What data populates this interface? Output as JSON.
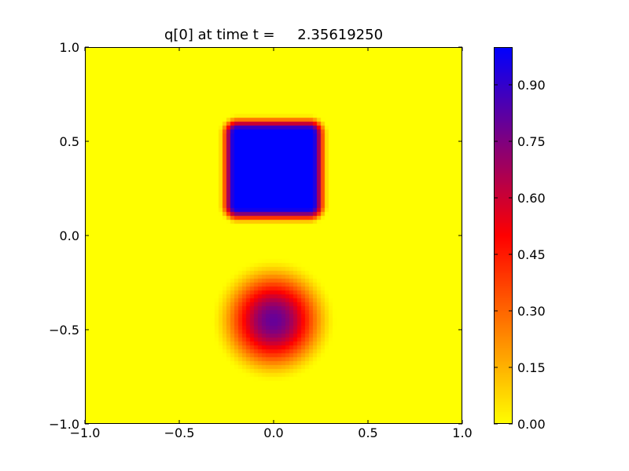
{
  "chart_data": {
    "type": "heatmap",
    "title": "q[0] at time t =     2.35619250",
    "xlim": [
      -1.0,
      1.0
    ],
    "ylim": [
      -1.0,
      1.0
    ],
    "x_ticks": [
      -1.0,
      -0.5,
      0.0,
      0.5,
      1.0
    ],
    "x_tick_labels": [
      "−1.0",
      "−0.5",
      "0.0",
      "0.5",
      "1.0"
    ],
    "y_ticks": [
      -1.0,
      -0.5,
      0.0,
      0.5,
      1.0
    ],
    "y_tick_labels": [
      "−1.0",
      "−0.5",
      "0.0",
      "0.5",
      "1.0"
    ],
    "grid": false,
    "colormap": {
      "stops": [
        {
          "value": 0.0,
          "color": "#ffff00"
        },
        {
          "value": 0.5,
          "color": "#ff0000"
        },
        {
          "value": 1.0,
          "color": "#0000ff"
        }
      ]
    },
    "colorbar": {
      "range": [
        0.0,
        1.0
      ],
      "ticks": [
        0.0,
        0.15,
        0.3,
        0.45,
        0.6,
        0.75,
        0.9
      ],
      "tick_labels": [
        "0.00",
        "0.15",
        "0.30",
        "0.45",
        "0.60",
        "0.75",
        "0.90"
      ],
      "placement": "right"
    },
    "features": [
      {
        "shape": "square",
        "center": [
          0.0,
          0.35
        ],
        "half_width": 0.25,
        "peak_value": 1.0,
        "edge_smoothing": 0.045
      },
      {
        "shape": "gaussian-disk",
        "center": [
          0.0,
          -0.45
        ],
        "radius": 0.33,
        "peak_value": 0.8
      }
    ],
    "background_value": 0.0
  }
}
